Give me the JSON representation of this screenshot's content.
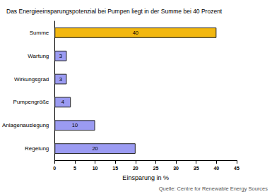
{
  "chart_data": {
    "type": "bar",
    "orientation": "horizontal",
    "title": "Das Energieeinsparungspotenzial bei Pumpen liegt in der Summe bei 40 Prozent",
    "categories": [
      "Summe",
      "Wartung",
      "Wirkungsgrad",
      "Pumpengröße",
      "Anlagenauslegung",
      "Regelung"
    ],
    "values": [
      40,
      3,
      3,
      4,
      10,
      20
    ],
    "colors": [
      "#f2b70f",
      "#9b9bf2",
      "#9b9bf2",
      "#9b9bf2",
      "#9b9bf2",
      "#9b9bf2"
    ],
    "xlabel": "Einsparung in %",
    "xlim": [
      0,
      45
    ],
    "xticks": [
      0,
      5,
      10,
      15,
      20,
      25,
      30,
      35,
      40,
      45
    ],
    "grid": false,
    "data_labels": true,
    "source": "Quelle: Centre for Renewable Energy Sources"
  }
}
